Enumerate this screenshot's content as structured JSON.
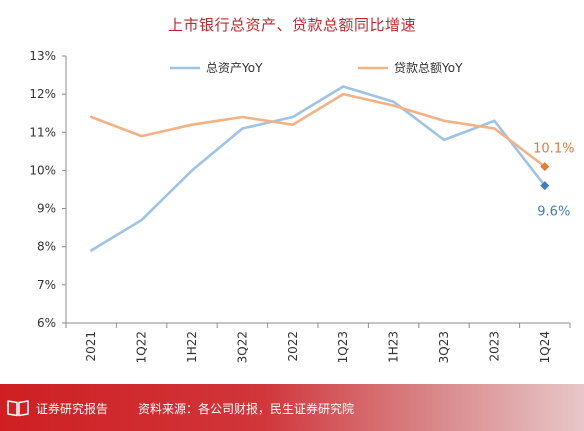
{
  "chart_data": {
    "type": "line",
    "title": "上市银行总资产、贷款总额同比增速",
    "categories": [
      "2021",
      "1Q22",
      "1H22",
      "3Q22",
      "2022",
      "1Q23",
      "1H23",
      "3Q23",
      "2023",
      "1Q24"
    ],
    "series": [
      {
        "name": "总资产YoY",
        "color": "#9dc3e6",
        "marker_color": "#3f7dc0",
        "values": [
          7.9,
          8.7,
          10.0,
          11.1,
          11.4,
          12.2,
          11.8,
          10.8,
          11.3,
          9.6
        ],
        "end_label": "9.6%"
      },
      {
        "name": "贷款总额YoY",
        "color": "#f4b183",
        "marker_color": "#e07b3a",
        "values": [
          11.4,
          10.9,
          11.2,
          11.4,
          11.2,
          12.0,
          11.7,
          11.3,
          11.1,
          10.1
        ],
        "end_label": "10.1%"
      }
    ],
    "ylim": [
      6,
      13
    ],
    "yticks": [
      "6%",
      "7%",
      "8%",
      "9%",
      "10%",
      "11%",
      "12%",
      "13%"
    ],
    "grid": false,
    "legend_position": "top-center"
  },
  "footer": {
    "icon": "book-icon",
    "brand": "证券研究报告",
    "source": "资料来源：各公司财报，民生证券研究院"
  }
}
